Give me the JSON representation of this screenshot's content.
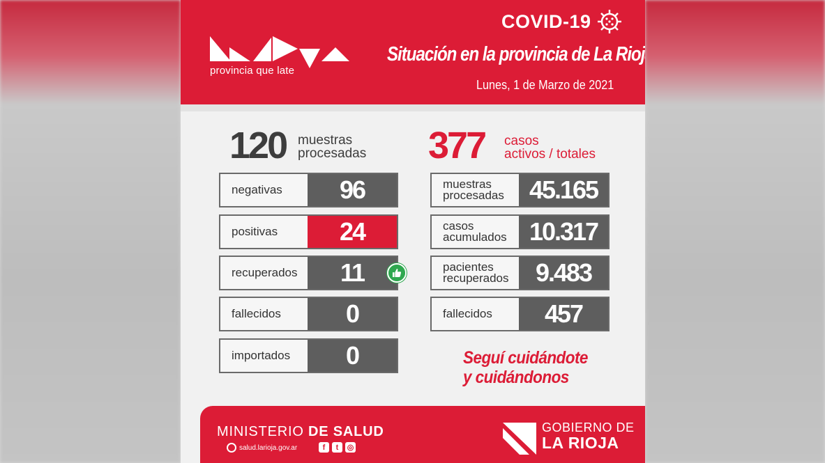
{
  "header": {
    "logo_tagline": "provincia que late",
    "covid_title": "COVID-19",
    "subtitle": "Situación en la provincia de La Rioja",
    "date": "Lunes, 1 de Marzo de 2021"
  },
  "daily": {
    "total": "120",
    "total_label_1": "muestras",
    "total_label_2": "procesadas",
    "rows": [
      {
        "label": "negativas",
        "value": "96"
      },
      {
        "label": "positivas",
        "value": "24"
      },
      {
        "label": "recuperados",
        "value": "11"
      },
      {
        "label": "fallecidos",
        "value": "0"
      },
      {
        "label": "importados",
        "value": "0"
      }
    ]
  },
  "cumulative": {
    "total": "377",
    "total_label_1": "casos",
    "total_label_2": "activos / totales",
    "rows": [
      {
        "label_1": "muestras",
        "label_2": "procesadas",
        "value": "45.165"
      },
      {
        "label_1": "casos",
        "label_2": "acumulados",
        "value": "10.317"
      },
      {
        "label_1": "pacientes",
        "label_2": "recuperados",
        "value": "9.483"
      },
      {
        "label_1": "fallecidos",
        "label_2": "",
        "value": "457"
      }
    ]
  },
  "slogan": {
    "line_1": "Seguí cuidándote",
    "line_2": "y cuidándonos"
  },
  "footer": {
    "ministry_prefix": "MINISTERIO",
    "ministry_bold": "DE SALUD",
    "website": "salud.larioja.gov.ar",
    "gov_line_1": "GOBIERNO DE",
    "gov_line_2": "LA RIOJA"
  },
  "colors": {
    "brand_red": "#dc1c36",
    "value_gray": "#5e5e5e",
    "thumb_green": "#2fa84f"
  },
  "icons": [
    "virus-icon",
    "thumbs-up-icon",
    "globe-icon",
    "facebook-icon",
    "twitter-icon",
    "instagram-icon"
  ]
}
